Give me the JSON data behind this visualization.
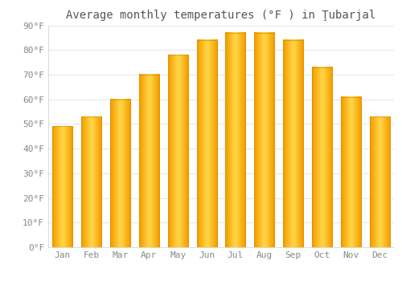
{
  "title": "Average monthly temperatures (°F ) in Ţubarjal",
  "months": [
    "Jan",
    "Feb",
    "Mar",
    "Apr",
    "May",
    "Jun",
    "Jul",
    "Aug",
    "Sep",
    "Oct",
    "Nov",
    "Dec"
  ],
  "values": [
    49,
    53,
    60,
    70,
    78,
    84,
    87,
    87,
    84,
    73,
    61,
    53
  ],
  "bar_color_center": "#FFDD44",
  "bar_color_edge": "#F5A800",
  "ylim": [
    0,
    90
  ],
  "yticks": [
    0,
    10,
    20,
    30,
    40,
    50,
    60,
    70,
    80,
    90
  ],
  "ytick_labels": [
    "0°F",
    "10°F",
    "20°F",
    "30°F",
    "40°F",
    "50°F",
    "60°F",
    "70°F",
    "80°F",
    "90°F"
  ],
  "background_color": "#FFFFFF",
  "grid_color": "#E8E8E8",
  "title_fontsize": 10,
  "tick_fontsize": 8,
  "bar_edge_color": "#CC8800"
}
